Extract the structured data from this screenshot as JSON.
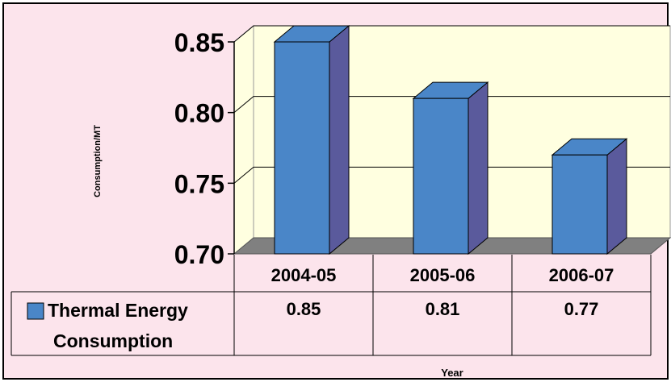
{
  "chart_data": {
    "type": "bar",
    "categories": [
      "2004-05",
      "2005-06",
      "2006-07"
    ],
    "series": [
      {
        "name": "Thermal Energy Consumption",
        "legend_lines": [
          "Thermal Energy",
          "Consumption"
        ],
        "values": [
          0.85,
          0.81,
          0.77
        ],
        "value_labels": [
          "0.85",
          "0.81",
          "0.77"
        ]
      }
    ],
    "title": "",
    "xlabel": "Year",
    "ylabel": "Consumption/MT",
    "ylim": [
      0.7,
      0.85
    ],
    "yticks": [
      0.7,
      0.75,
      0.8,
      0.85
    ],
    "ytick_labels": [
      "0.70",
      "0.75",
      "0.80",
      "0.85"
    ],
    "grid": true,
    "data_table": true,
    "colors": {
      "background": "#fce4ec",
      "plot_wall": "#ffffe0",
      "floor": "#808080",
      "bar_front": "#4a86c8",
      "bar_side": "#5a5a9c",
      "bar_top": "#4a86c8",
      "legend_swatch": "#4a86c8"
    }
  }
}
